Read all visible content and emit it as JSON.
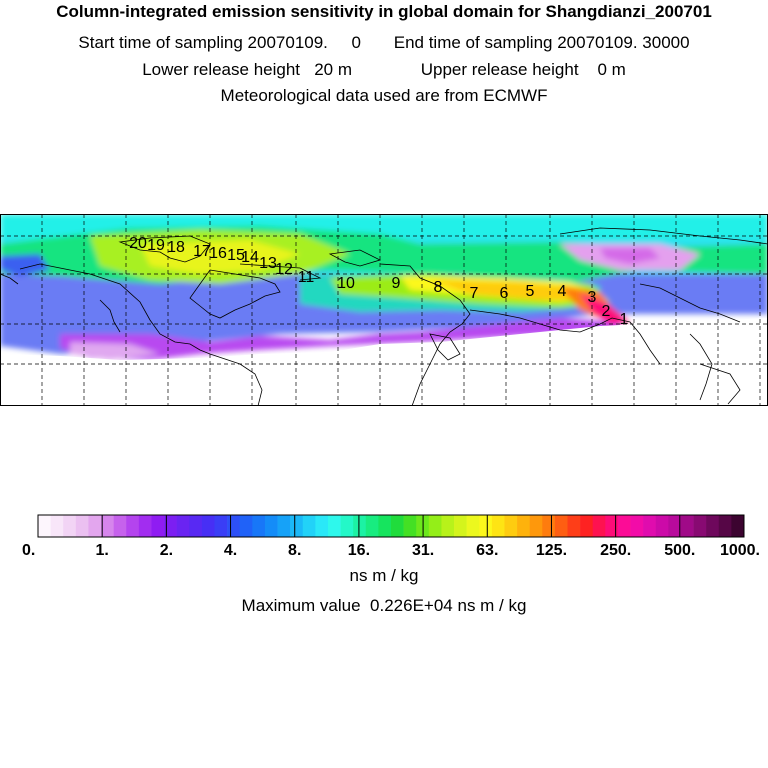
{
  "header": {
    "title": "Column-integrated emission sensitivity in global domain for Shangdianzi_200701",
    "start_label": "Start time of sampling 20070109.",
    "start_time": "0",
    "end_label": "End time of sampling 20070109.",
    "end_time": "30000",
    "lower_label": "Lower release height",
    "lower_value": "20 m",
    "upper_label": "Upper release height",
    "upper_value": "0 m",
    "met_line": "Meteorological data used are from ECMWF"
  },
  "map": {
    "trajectory_labels": [
      "1",
      "2",
      "3",
      "4",
      "5",
      "6",
      "7",
      "8",
      "9",
      "10",
      "11",
      "12",
      "13",
      "14",
      "15",
      "16",
      "17",
      "18",
      "19",
      "20"
    ],
    "colors": {
      "land_outline": "#000000",
      "grid": "#000000",
      "background": "#ffffff"
    }
  },
  "colorbar": {
    "tick_labels": [
      "0.",
      "1.",
      "2.",
      "4.",
      "8.",
      "16.",
      "31.",
      "63.",
      "125.",
      "250.",
      "500.",
      "1000."
    ],
    "colors": [
      "#fdf6fd",
      "#f8e6f9",
      "#f2d4f5",
      "#ebc0f1",
      "#e3a6ee",
      "#d685ec",
      "#c662ec",
      "#b444ee",
      "#a22df0",
      "#8f1cf2",
      "#7c1ff2",
      "#6a24f2",
      "#5829f3",
      "#472ff5",
      "#3a3ef6",
      "#2d50f7",
      "#2062f8",
      "#1877f8",
      "#148cf8",
      "#16a2f8",
      "#1bb9f8",
      "#22d2f8",
      "#2ae8f8",
      "#2ef8ec",
      "#24f8c8",
      "#1cf2a4",
      "#18ec80",
      "#16e45e",
      "#20dc3c",
      "#44e024",
      "#6ce81c",
      "#94ee18",
      "#b8f21a",
      "#d4f41c",
      "#ecf81e",
      "#fcf81c",
      "#fee414",
      "#fecc10",
      "#feb20c",
      "#fe980c",
      "#fe7c0e",
      "#fe5e12",
      "#fe3e18",
      "#fe2222",
      "#fe1250",
      "#fe0c78",
      "#fc0c96",
      "#f20ca8",
      "#e00cae",
      "#cc0aa8",
      "#b80a9c",
      "#a00a88",
      "#880a72",
      "#6e085c",
      "#560646",
      "#3c0430"
    ],
    "units": "ns m / kg",
    "max_label": "Maximum value",
    "max_value": "0.226E+04",
    "max_units": "ns m / kg"
  }
}
